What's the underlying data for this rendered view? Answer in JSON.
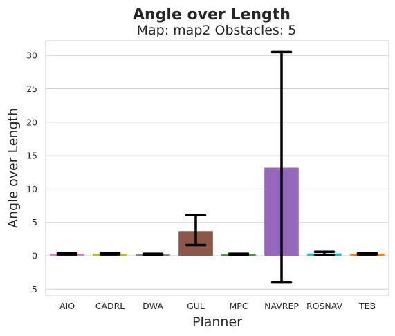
{
  "chart_data": {
    "type": "bar",
    "title": "Angle over Length",
    "subtitle": "Map: map2 Obstacles: 5",
    "xlabel": "Planner",
    "ylabel": "Angle over Length",
    "ylim": [
      -5.9,
      32.2
    ],
    "yticks": [
      -5,
      0,
      5,
      10,
      15,
      20,
      25,
      30
    ],
    "grid": true,
    "categories": [
      "AIO",
      "CADRL",
      "DWA",
      "GUL",
      "MPC",
      "NAVREP",
      "ROSNAV",
      "TEB"
    ],
    "values": [
      0.25,
      0.3,
      0.2,
      3.7,
      0.2,
      13.2,
      0.35,
      0.3
    ],
    "error_low": [
      0.2,
      0.2,
      0.15,
      1.6,
      0.15,
      -4.0,
      0.1,
      0.2
    ],
    "error_high": [
      0.35,
      0.4,
      0.3,
      6.1,
      0.3,
      30.5,
      0.6,
      0.4
    ],
    "colors": [
      "#e377c2",
      "#bcbd22",
      "#7f7f7f",
      "#8c564b",
      "#2ca02c",
      "#9467bd",
      "#17becf",
      "#ff7f0e"
    ]
  }
}
